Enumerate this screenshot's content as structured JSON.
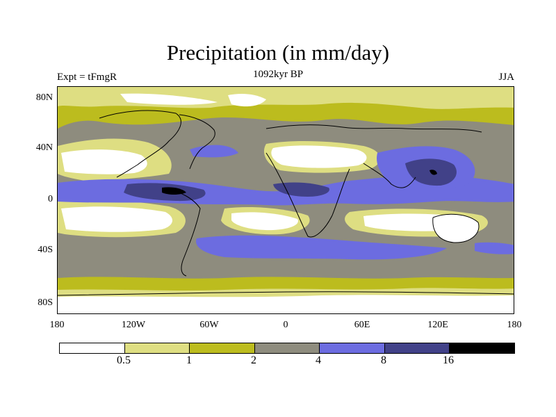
{
  "title": "Precipitation (in mm/day)",
  "subtitle": "1092kyr BP",
  "left_label": "Expt = tFmgR",
  "right_label": "JJA",
  "lat_labels": [
    "80N",
    "40N",
    "0",
    "40S",
    "80S"
  ],
  "lon_labels": [
    "180",
    "120W",
    "60W",
    "0",
    "60E",
    "120E",
    "180"
  ],
  "colorbar": {
    "labels": [
      "0.5",
      "1",
      "2",
      "4",
      "8",
      "16"
    ],
    "colors": [
      "#ffffff",
      "#dede82",
      "#bcbc1e",
      "#8e8c7e",
      "#6c6ce0",
      "#414188",
      "#000000"
    ]
  }
}
